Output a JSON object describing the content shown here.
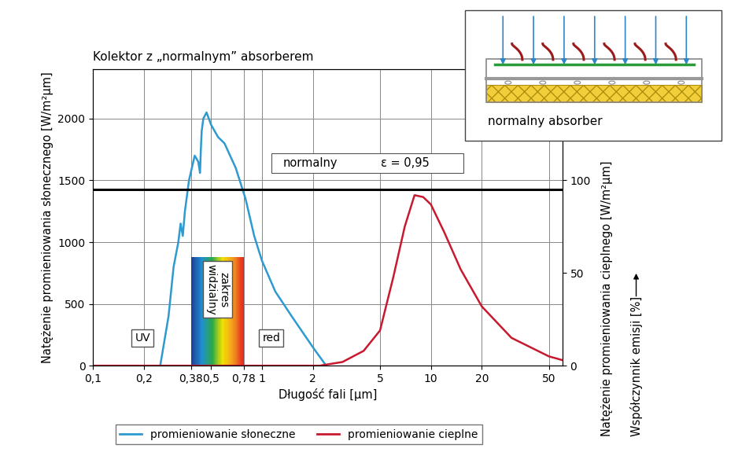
{
  "chart_data": {
    "type": "line",
    "title": "Kolektor z „normalnym” absorberem",
    "x_label": "Długość fali [µm]",
    "y_label": "Natężenie promieniowania słonecznego [W/m²µm]",
    "y2_label": "Natężenie promieniowania cieplnego [W/m²µm]",
    "y2_label_2": "Współczynnik emisji [%]",
    "log": "x",
    "grid": true,
    "legend": "lower center",
    "xlim": [
      0.1,
      60
    ],
    "xticks": [
      {
        "value": 0.1,
        "label": "0,1"
      },
      {
        "value": 0.2,
        "label": "0,2"
      },
      {
        "value": 0.38,
        "label": "0,38"
      },
      {
        "value": 0.5,
        "label": "0,5"
      },
      {
        "value": 0.78,
        "label": "0,78"
      },
      1,
      2,
      5,
      10,
      20,
      50
    ],
    "ylim": [
      0,
      2400
    ],
    "yticks": [
      0,
      500,
      1000,
      1500,
      2000
    ],
    "y2lim": [
      0,
      160
    ],
    "y2ticks": [
      0,
      50,
      100
    ],
    "series": [
      {
        "name": "promieniowanie słoneczne",
        "color": "#2e9ad0",
        "x": [
          0.25,
          0.28,
          0.3,
          0.32,
          0.33,
          0.34,
          0.35,
          0.37,
          0.4,
          0.42,
          0.43,
          0.435,
          0.44,
          0.45,
          0.47,
          0.5,
          0.55,
          0.6,
          0.7,
          0.8,
          0.9,
          1.0,
          1.2,
          1.5,
          2.0,
          2.4
        ],
        "values": [
          0,
          400,
          800,
          1000,
          1150,
          1050,
          1250,
          1500,
          1700,
          1650,
          1560,
          1750,
          1900,
          2000,
          2050,
          1950,
          1850,
          1800,
          1600,
          1350,
          1050,
          850,
          600,
          400,
          150,
          0
        ]
      },
      {
        "name": "promieniowanie cieplne",
        "color": "#c8192e",
        "axis": "y2",
        "x": [
          0.1,
          2.2,
          3,
          4,
          5,
          6,
          7,
          8,
          9,
          10,
          12,
          15,
          20,
          30,
          50,
          60
        ],
        "values": [
          0,
          0,
          2,
          8,
          19,
          48,
          75,
          92,
          91,
          87,
          72,
          52,
          32,
          15,
          5,
          3
        ]
      }
    ],
    "emission": {
      "label": "normalny",
      "value_label": "ε = 0,95",
      "value": 95,
      "axis": "y2",
      "color": "#000000"
    },
    "visible_band": {
      "label": "zakres\nwidzialny",
      "x": [
        0.38,
        0.78
      ],
      "height": 880
    },
    "annotations": [
      "UV",
      "red"
    ],
    "inset": {
      "label": "normalny absorber"
    }
  }
}
